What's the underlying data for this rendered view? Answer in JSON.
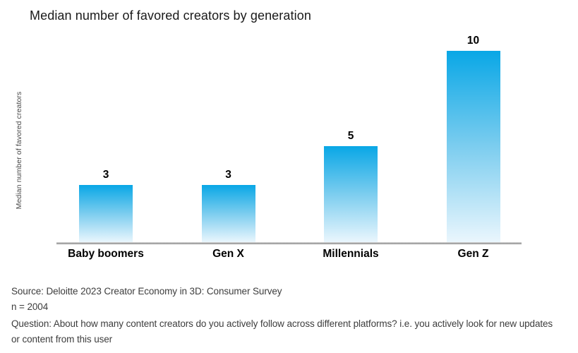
{
  "chart_data": {
    "type": "bar",
    "title": "Median number of favored creators by generation",
    "categories": [
      "Baby boomers",
      "Gen X",
      "Millennials",
      "Gen Z"
    ],
    "values": [
      3,
      3,
      5,
      10
    ],
    "xlabel": "",
    "ylabel": "Median number of favored creators",
    "ylim": [
      0,
      11
    ],
    "grid": false,
    "legend": "none",
    "colors": {
      "bar_gradient_top": "#09a7e6",
      "bar_gradient_mid": "#7ccdef",
      "bar_gradient_bottom": "#eaf6fd",
      "axis_line": "#9a9a9a",
      "title_text": "#1a1a1a",
      "category_label_text": "#000000",
      "value_label_text": "#000000",
      "ylabel_text": "#4a4a4a",
      "footer_text": "#3d3d3d"
    }
  },
  "footer": {
    "source": "Source: Deloitte 2023 Creator Economy in 3D: Consumer Survey",
    "sample_size": "n = 2004",
    "question_lines": [
      "Question: About how many content creators do you actively follow across different platforms? i.e. you actively look for new updates",
      "or content from this user"
    ]
  }
}
